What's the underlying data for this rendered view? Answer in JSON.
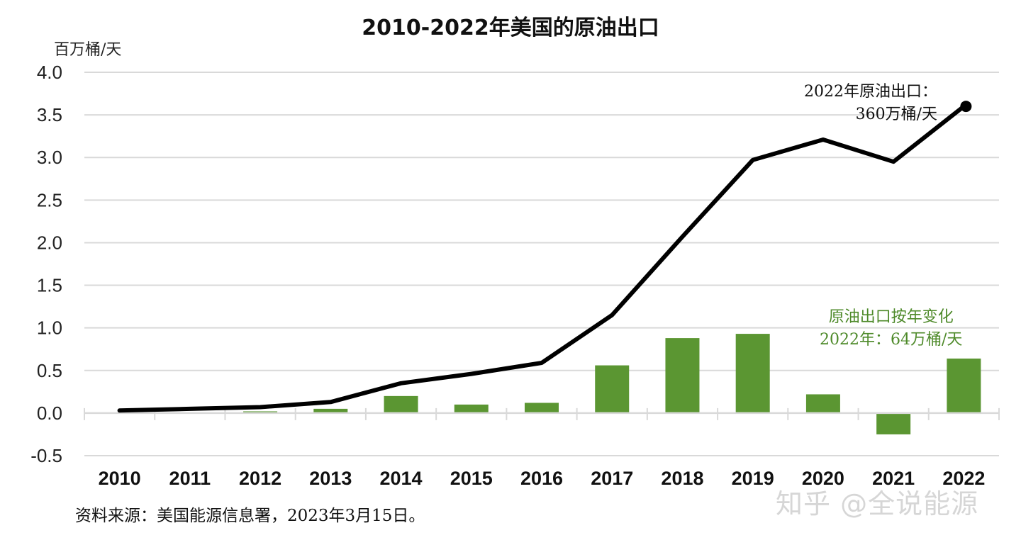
{
  "header": {
    "title": "2010-2022年美国的原油出口",
    "unit_label": "百万桶/天"
  },
  "annotations": {
    "line_note_line1": "2022年原油出口：",
    "line_note_line2": "360万桶/天",
    "bar_note_line1": "原油出口按年变化",
    "bar_note_line2": "2022年：64万桶/天"
  },
  "footer": {
    "source": "资料来源：美国能源信息署，2023年3月15日。",
    "watermark": "知乎 @全说能源"
  },
  "colors": {
    "line": "#000000",
    "bar": "#5b9632",
    "annotation_green": "#4e8a2a",
    "grid": "#d9d9d9"
  },
  "chart_data": {
    "type": "bar+line",
    "title": "2010-2022年美国的原油出口",
    "ylabel": "百万桶/天",
    "xlabel": "",
    "ylim": [
      -0.5,
      4.0
    ],
    "yticks": [
      "4.0",
      "3.5",
      "3.0",
      "2.5",
      "2.0",
      "1.5",
      "1.0",
      "0.5",
      "0.0",
      "-0.5"
    ],
    "ytick_values": [
      4.0,
      3.5,
      3.0,
      2.5,
      2.0,
      1.5,
      1.0,
      0.5,
      0.0,
      -0.5
    ],
    "grid": true,
    "legend": "none (inline annotations)",
    "categories": [
      "2010",
      "2011",
      "2012",
      "2013",
      "2014",
      "2015",
      "2016",
      "2017",
      "2018",
      "2019",
      "2020",
      "2021",
      "2022"
    ],
    "series": [
      {
        "name": "原油出口",
        "type": "line",
        "color": "#000000",
        "values": [
          0.03,
          0.05,
          0.07,
          0.13,
          0.35,
          0.46,
          0.59,
          1.15,
          2.07,
          2.97,
          3.21,
          2.95,
          3.6
        ]
      },
      {
        "name": "原油出口按年变化",
        "type": "bar",
        "color": "#5b9632",
        "values": [
          null,
          0.0,
          0.02,
          0.05,
          0.2,
          0.1,
          0.12,
          0.56,
          0.88,
          0.93,
          0.22,
          -0.25,
          0.64
        ]
      }
    ],
    "annotations": [
      {
        "text": "2022年原油出口：360万桶/天",
        "target": "2022 line point"
      },
      {
        "text": "原油出口按年变化 2022年：64万桶/天",
        "target": "2022 bar"
      }
    ]
  }
}
